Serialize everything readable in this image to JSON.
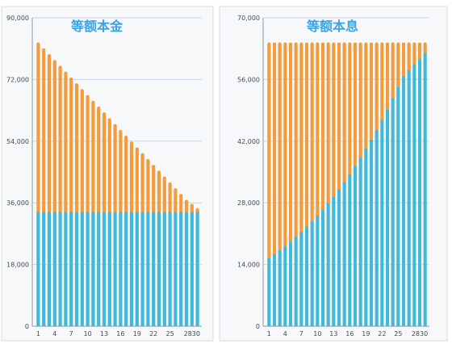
{
  "colors": {
    "principal": "#41b9d9",
    "interest": "#f39c3c",
    "title": "#3aa3e3"
  },
  "chart_data": [
    {
      "type": "bar",
      "stacked": true,
      "title": "等额本金",
      "xlabel": "",
      "ylabel": "",
      "ylim": [
        0,
        90000
      ],
      "yticks": [
        0,
        18000,
        36000,
        54000,
        72000,
        90000
      ],
      "ytick_labels": [
        "0",
        "18,000",
        "36,000",
        "54,000",
        "72,000",
        "90,000"
      ],
      "xtick_labels": [
        "1",
        "4",
        "7",
        "10",
        "13",
        "16",
        "19",
        "22",
        "25",
        "2830"
      ],
      "grid": true,
      "legend": "none",
      "categories": [
        1,
        2,
        3,
        4,
        5,
        6,
        7,
        8,
        9,
        10,
        11,
        12,
        13,
        14,
        15,
        16,
        17,
        18,
        19,
        20,
        21,
        22,
        23,
        24,
        25,
        26,
        27,
        28,
        29,
        30
      ],
      "series": [
        {
          "color_key": "principal",
          "values": [
            33300,
            33300,
            33300,
            33300,
            33300,
            33300,
            33300,
            33300,
            33300,
            33300,
            33300,
            33300,
            33300,
            33300,
            33300,
            33300,
            33300,
            33300,
            33300,
            33300,
            33300,
            33300,
            33300,
            33300,
            33300,
            33300,
            33300,
            33300,
            33300,
            33300
          ]
        },
        {
          "color_key": "interest",
          "values": [
            49500,
            47800,
            46100,
            44400,
            42700,
            41000,
            39300,
            37600,
            35900,
            34200,
            32500,
            30800,
            29100,
            27400,
            25700,
            24000,
            22300,
            20600,
            18900,
            17200,
            15500,
            13800,
            12100,
            10400,
            8700,
            7000,
            5300,
            3600,
            2400,
            1200
          ]
        }
      ]
    },
    {
      "type": "bar",
      "stacked": true,
      "title": "等额本息",
      "xlabel": "",
      "ylabel": "",
      "ylim": [
        0,
        70000
      ],
      "yticks": [
        0,
        14000,
        28000,
        42000,
        56000,
        70000
      ],
      "ytick_labels": [
        "0",
        "14,000",
        "28,000",
        "42,000",
        "56,000",
        "70,000"
      ],
      "xtick_labels": [
        "1",
        "4",
        "7",
        "10",
        "13",
        "16",
        "19",
        "22",
        "25",
        "2830"
      ],
      "grid": true,
      "legend": "none",
      "categories": [
        1,
        2,
        3,
        4,
        5,
        6,
        7,
        8,
        9,
        10,
        11,
        12,
        13,
        14,
        15,
        16,
        17,
        18,
        19,
        20,
        21,
        22,
        23,
        24,
        25,
        26,
        27,
        28,
        29,
        30
      ],
      "series": [
        {
          "color_key": "principal",
          "values": [
            15400,
            16300,
            17200,
            18200,
            19200,
            20300,
            21400,
            22600,
            23800,
            25100,
            26500,
            27900,
            29400,
            31000,
            32700,
            34400,
            36300,
            38200,
            40200,
            42300,
            44500,
            46800,
            49200,
            51700,
            54300,
            56700,
            58100,
            59300,
            60600,
            62000
          ]
        },
        {
          "color_key": "interest",
          "values": [
            49000,
            48100,
            47200,
            46200,
            45200,
            44100,
            43000,
            41800,
            40600,
            39300,
            37900,
            36500,
            35000,
            33400,
            31700,
            30000,
            28100,
            26200,
            24200,
            22100,
            19900,
            17600,
            15200,
            12700,
            10100,
            7700,
            6300,
            5100,
            3800,
            2400
          ]
        }
      ]
    }
  ]
}
